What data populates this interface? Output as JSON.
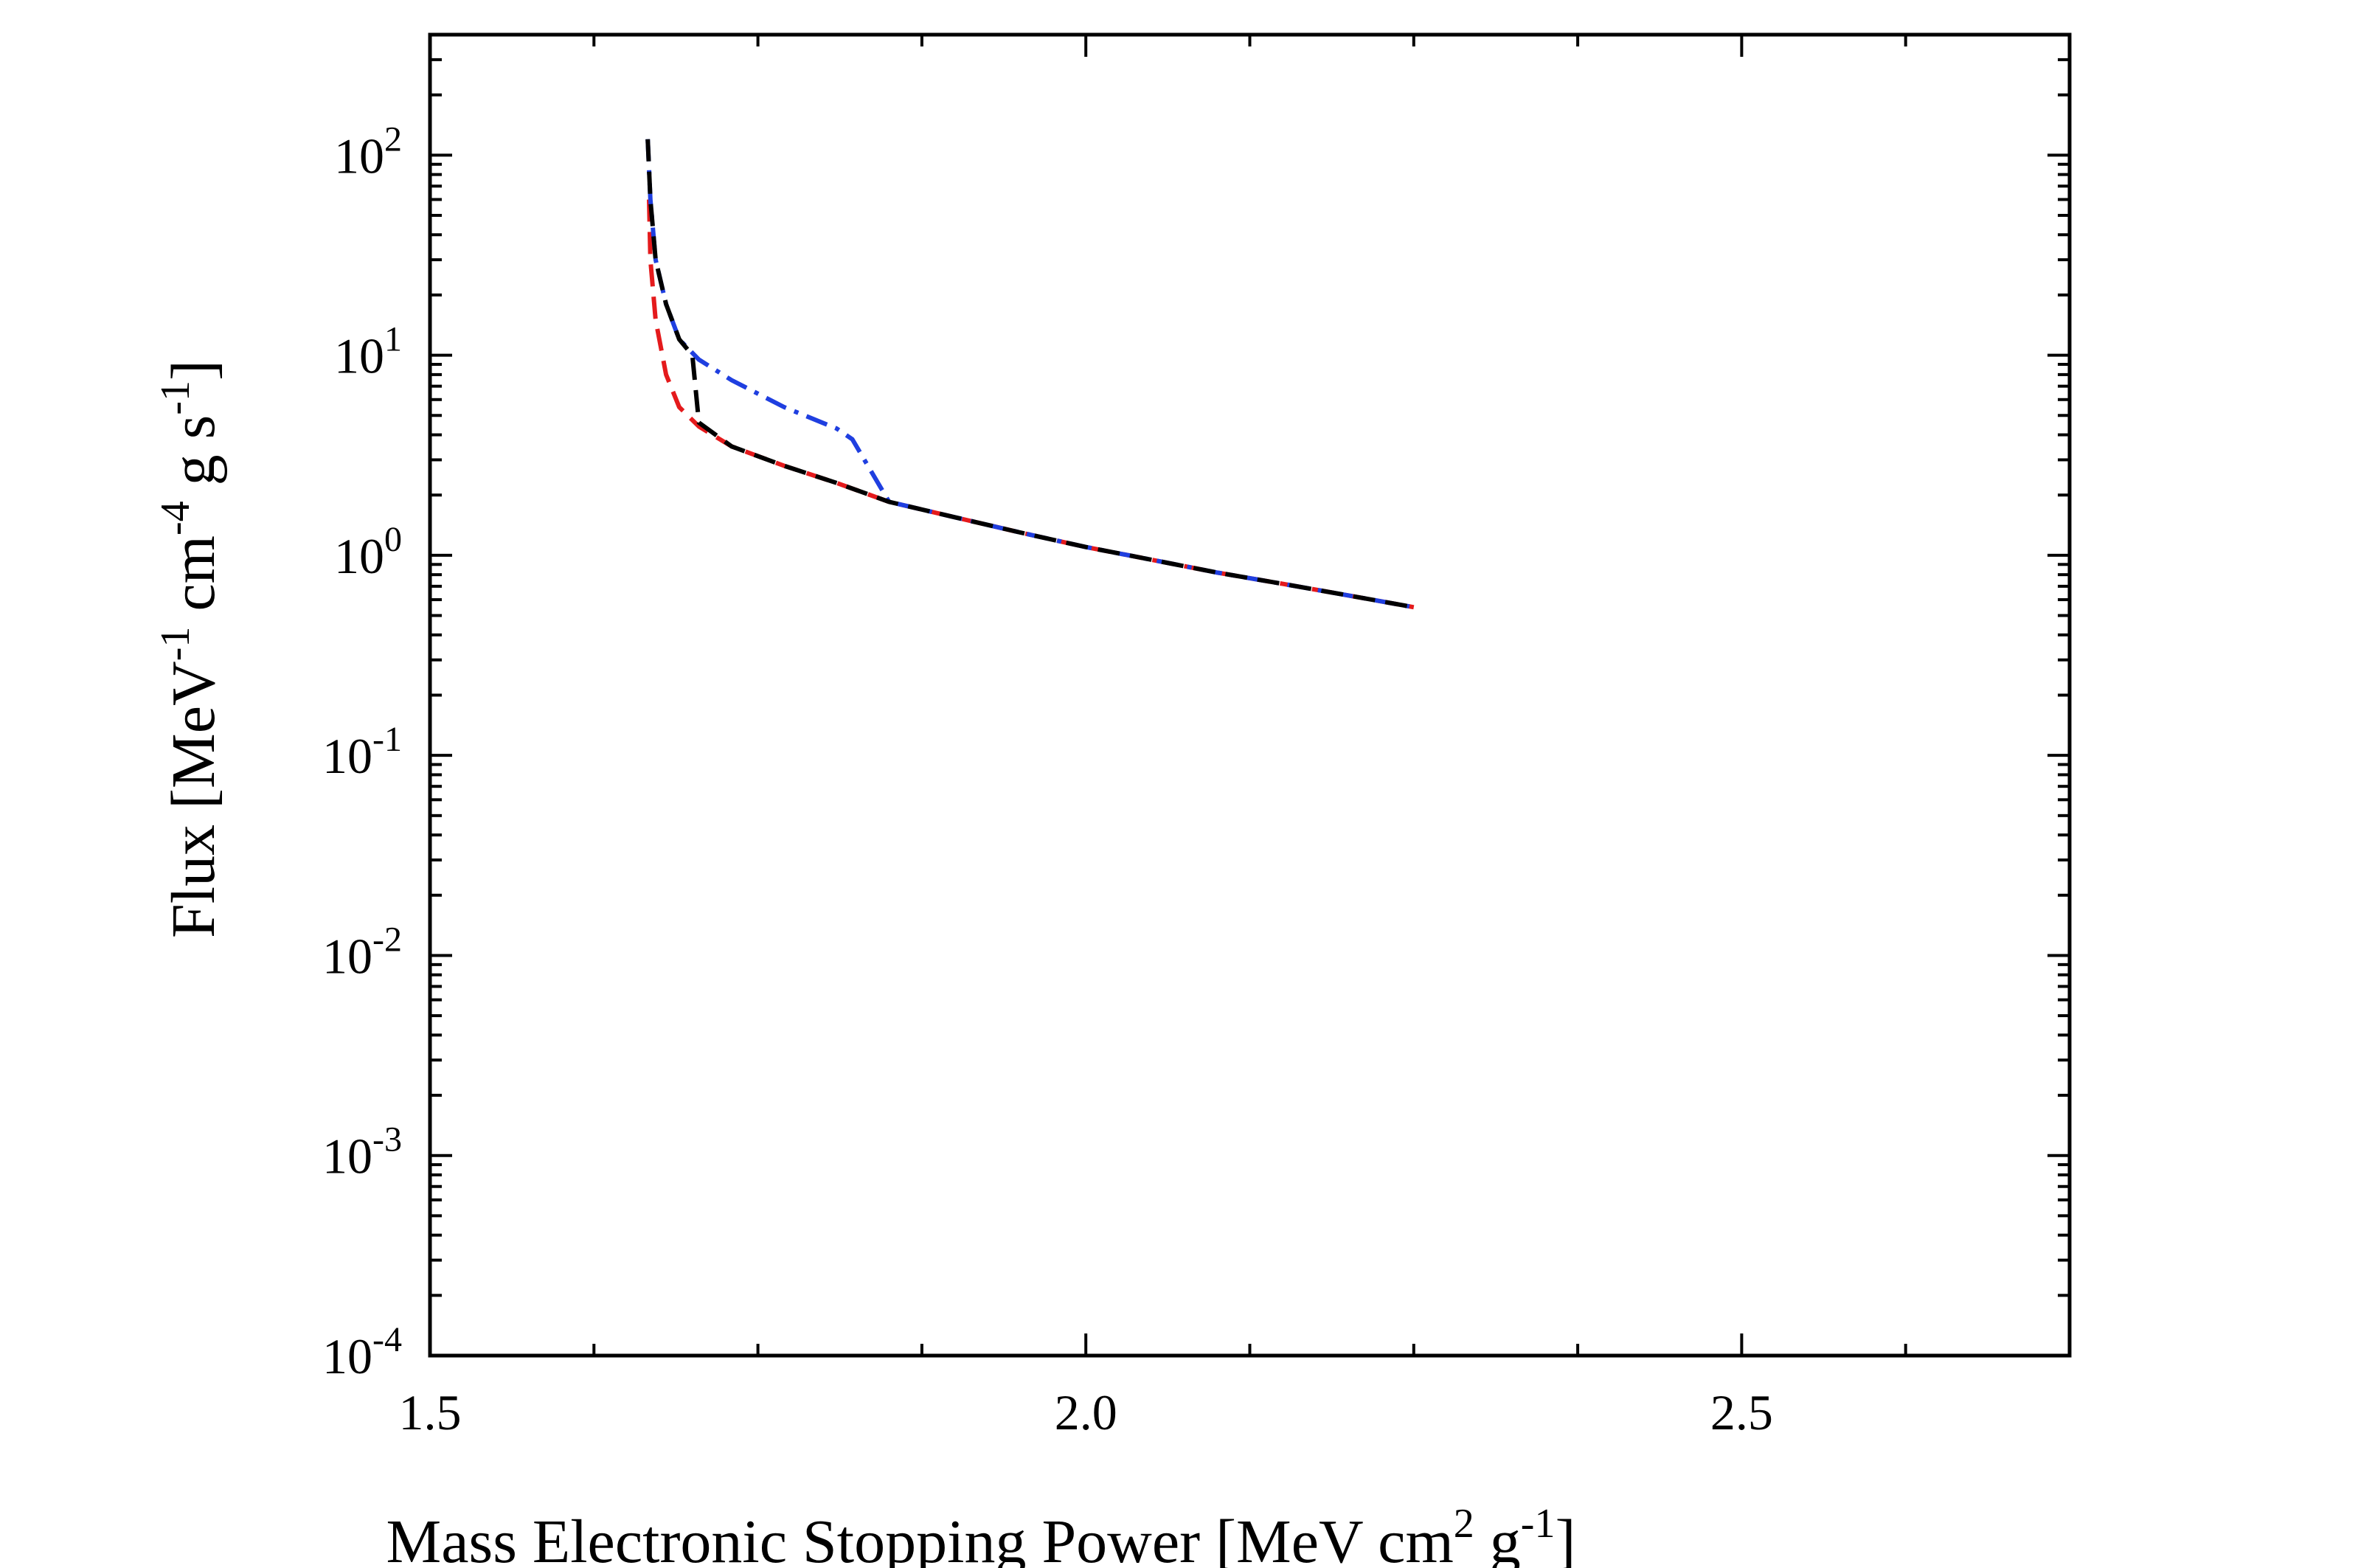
{
  "chart_data": {
    "type": "line",
    "title": "",
    "xlabel": "Mass Electronic Stopping Power [MeV cm² g⁻¹]",
    "xlabel_parts": {
      "main": "Mass Electronic Stopping Power [MeV cm",
      "sup1": "2",
      "mid": " g",
      "sup2": "-1",
      "end": "]"
    },
    "ylabel": "Flux [MeV⁻¹ cm⁻⁴ g s⁻¹]",
    "ylabel_parts": {
      "a": "Flux [MeV",
      "sup1": "-1",
      "b": " cm",
      "sup2": "-4",
      "c": " g s",
      "sup3": "-1",
      "d": "]"
    },
    "xlim": [
      1.5,
      2.75
    ],
    "ylim": [
      0.0001,
      400
    ],
    "yscale": "log",
    "grid": false,
    "legend": "none",
    "x_ticks": [
      {
        "value": 1.5,
        "label": "1.5"
      },
      {
        "value": 2.0,
        "label": "2.0"
      },
      {
        "value": 2.5,
        "label": "2.5"
      }
    ],
    "y_ticks": [
      {
        "value": 100,
        "base": "10",
        "exp": "2"
      },
      {
        "value": 10,
        "base": "10",
        "exp": "1"
      },
      {
        "value": 1,
        "base": "10",
        "exp": "0"
      },
      {
        "value": 0.1,
        "base": "10",
        "exp": "-1"
      },
      {
        "value": 0.01,
        "base": "10",
        "exp": "-2"
      },
      {
        "value": 0.001,
        "base": "10",
        "exp": "-3"
      },
      {
        "value": 0.0001,
        "base": "10",
        "exp": "-4"
      }
    ],
    "series": [
      {
        "color": "#e41a1c",
        "dash": "dashed",
        "x": [
          1.667,
          1.668,
          1.672,
          1.68,
          1.69,
          1.705,
          1.73,
          1.77,
          1.81,
          1.85,
          1.9,
          1.95,
          2.0,
          2.05,
          2.1,
          2.15,
          2.2,
          2.25
        ],
        "y": [
          60,
          30,
          15,
          8,
          5.5,
          4.4,
          3.5,
          2.8,
          2.3,
          1.85,
          1.55,
          1.3,
          1.1,
          0.95,
          0.82,
          0.72,
          0.63,
          0.55
        ]
      },
      {
        "color": "#1f3fe0",
        "dash": "dashdot",
        "x": [
          1.666,
          1.668,
          1.672,
          1.68,
          1.69,
          1.705,
          1.73,
          1.77,
          1.81,
          1.822,
          1.85,
          1.9,
          1.95,
          2.0,
          2.05,
          2.1,
          2.15,
          2.2,
          2.25
        ],
        "y": [
          120,
          60,
          30,
          18,
          12,
          9.5,
          7.5,
          5.5,
          4.3,
          3.8,
          1.85,
          1.55,
          1.3,
          1.1,
          0.95,
          0.82,
          0.72,
          0.63,
          0.55
        ]
      },
      {
        "color": "#000000",
        "dash": "dashed",
        "x": [
          1.666,
          1.668,
          1.672,
          1.68,
          1.69,
          1.7,
          1.705,
          1.73,
          1.77,
          1.81,
          1.85,
          1.9,
          1.95,
          2.0,
          2.05,
          2.1,
          2.15,
          2.2,
          2.25
        ],
        "y": [
          120,
          60,
          30,
          18,
          12,
          10,
          4.6,
          3.5,
          2.8,
          2.3,
          1.85,
          1.55,
          1.3,
          1.1,
          0.95,
          0.82,
          0.72,
          0.63,
          0.55
        ]
      }
    ]
  }
}
